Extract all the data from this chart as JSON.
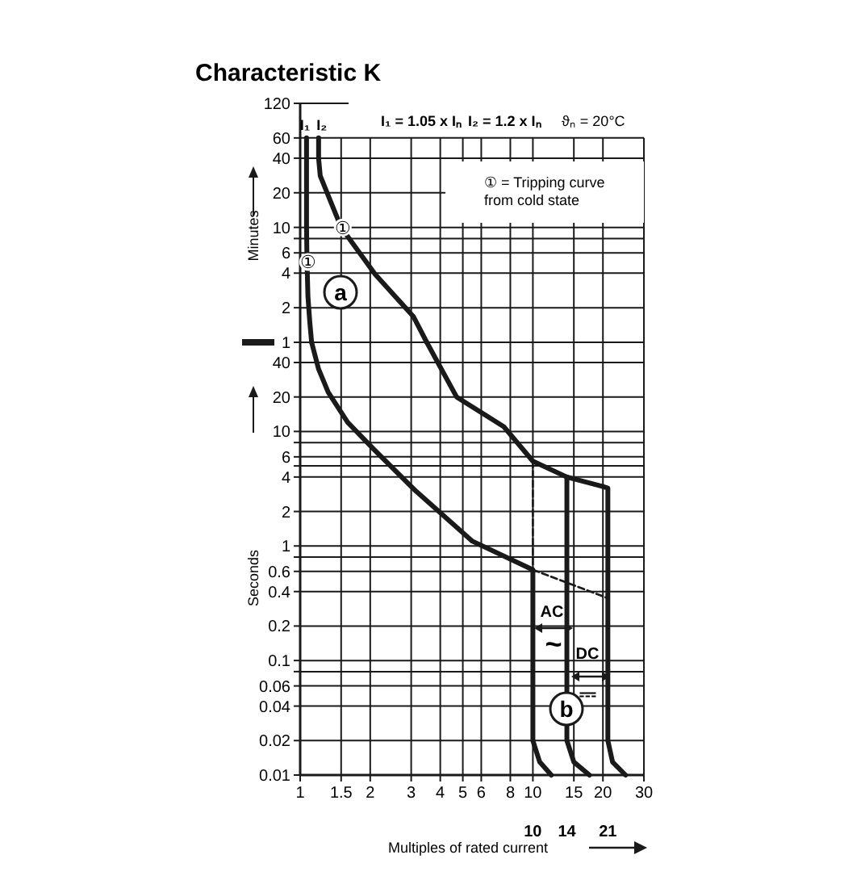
{
  "chart_data": [
    {
      "type": "line",
      "title": "Characteristic K",
      "ylabel": "Minutes",
      "log": "xy",
      "grid": true,
      "tick_labels": "y",
      "xlim": [
        1,
        30
      ],
      "ylim": [
        1,
        120
      ],
      "xticks": [
        1,
        1.5,
        2,
        3,
        4,
        5,
        6,
        8,
        10,
        15,
        20,
        30
      ],
      "yticks": [
        120,
        60,
        40,
        20,
        10,
        {
          "value": 8,
          "label": null
        },
        6,
        4,
        2,
        1
      ],
      "series": [
        {
          "color": "#1a1a1a",
          "x": [
            1.065,
            1.065,
            1.07,
            1.08,
            1.1,
            1.12
          ],
          "values": [
            60,
            10,
            5,
            2.5,
            1.5,
            1
          ]
        },
        {
          "color": "#1a1a1a",
          "x": [
            1.2,
            1.2,
            1.22,
            1.5,
            2.1,
            3.07,
            3.5
          ],
          "values": [
            60,
            40,
            28,
            10,
            3.9,
            1.67,
            1
          ]
        }
      ],
      "annotations": [
        "I₁ = 1.05 x Iₙ",
        "I₂ = 1.2 x Iₙ",
        "ϑₙ = 20°C",
        "① = Tripping curve",
        "from cold state",
        "a",
        {
          "text": "I₁",
          "x": 1.065,
          "y": 60
        },
        {
          "text": "I₂",
          "x": 1.2,
          "y": 60
        },
        {
          "text": "①",
          "x": 1.5,
          "y": 10
        },
        {
          "text": "①",
          "x": 1.065,
          "y": 5
        }
      ]
    },
    {
      "type": "line",
      "xlabel": "Multiples of rated current",
      "ylabel": "Seconds",
      "log": "xy",
      "grid": true,
      "xlim": [
        1,
        30
      ],
      "ylim": [
        0.01,
        60
      ],
      "xticks": [
        1,
        1.5,
        2,
        3,
        4,
        5,
        6,
        8,
        10,
        15,
        20,
        30
      ],
      "yticks": [
        40,
        20,
        10,
        {
          "value": 8,
          "label": null
        },
        6,
        {
          "value": 5,
          "label": null
        },
        4,
        2,
        1,
        {
          "value": 0.8,
          "label": null
        },
        0.6,
        0.4,
        0.2,
        0.1,
        {
          "value": 0.08,
          "label": null
        },
        0.06,
        0.04,
        0.02,
        0.01
      ],
      "series": [
        {
          "color": "#1a1a1a",
          "x": [
            1.12,
            1.2,
            1.32,
            1.6,
            2.07,
            3.15,
            5.5,
            10,
            10,
            10.7,
            12
          ],
          "values": [
            60,
            35,
            22,
            12,
            7,
            3,
            1.1,
            0.62,
            0.02,
            0.013,
            0.01
          ]
        },
        {
          "color": "#1a1a1a",
          "x": [
            3.5,
            4.7,
            7.5,
            10,
            14,
            20,
            21,
            21,
            22,
            25
          ],
          "values": [
            60,
            20,
            11,
            5.5,
            4,
            3.3,
            3.2,
            0.02,
            0.013,
            0.01
          ]
        },
        {
          "color": "#1a1a1a",
          "x": [
            14,
            14,
            15,
            17.5
          ],
          "values": [
            4,
            0.02,
            0.013,
            0.01
          ]
        },
        {
          "color": "#1a1a1a",
          "line_style": "dashed",
          "x": [
            10,
            10
          ],
          "values": [
            5.5,
            0.62
          ]
        },
        {
          "color": "#1a1a1a",
          "line_style": "dashed",
          "x": [
            10,
            21
          ],
          "values": [
            0.62,
            0.35
          ]
        }
      ],
      "annotations": [
        "b",
        "AC",
        "DC",
        "~",
        "⎓",
        "10",
        "14",
        "21"
      ]
    }
  ]
}
